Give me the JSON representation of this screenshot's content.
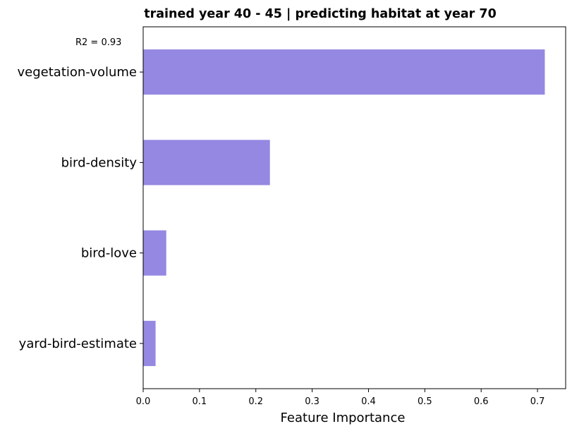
{
  "chart_data": {
    "type": "bar",
    "orientation": "horizontal",
    "title": "trained year 40 - 45 | predicting habitat at year 70",
    "annotation": "R2 = 0.93",
    "xlabel": "Feature Importance",
    "ylabel": "",
    "categories": [
      "vegetation-volume",
      "bird-density",
      "bird-love",
      "yard-bird-estimate"
    ],
    "values": [
      0.713,
      0.225,
      0.041,
      0.022
    ],
    "xlim": [
      0,
      0.75
    ],
    "xticks": [
      "0.0",
      "0.1",
      "0.2",
      "0.3",
      "0.4",
      "0.5",
      "0.6",
      "0.7"
    ],
    "bar_color": "#9588e2",
    "grid": false,
    "legend": "none"
  }
}
